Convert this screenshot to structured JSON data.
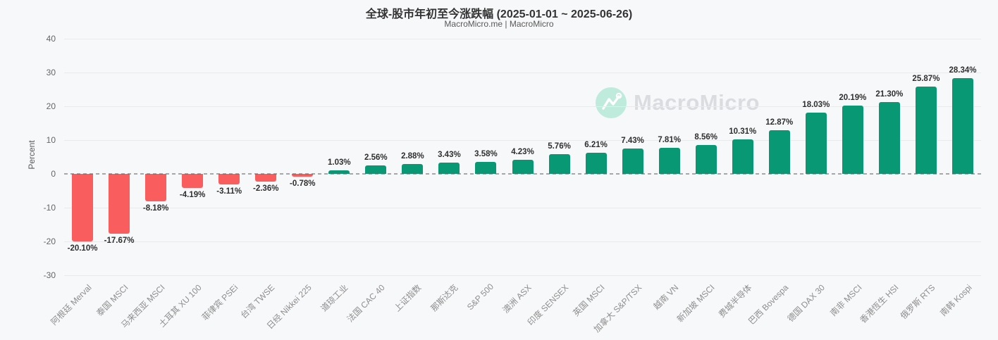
{
  "header": {
    "title": "全球-股市年初至今涨跌幅 (2025-01-01 ~ 2025-06-26)",
    "subtitle": "MacroMicro.me | MacroMicro"
  },
  "watermark": {
    "brand": "MacroMicro",
    "icon": "mountain-chart-icon",
    "circle_color": "#BEEBDB",
    "text_color": "#DADCE0"
  },
  "chart_data": {
    "type": "bar",
    "title": "全球-股市年初至今涨跌幅 (2025-01-01 ~ 2025-06-26)",
    "xlabel": "",
    "ylabel": "Percent",
    "ylim": [
      -30,
      40
    ],
    "yticks": [
      40,
      30,
      20,
      10,
      0,
      -10,
      -20,
      -30
    ],
    "grid": true,
    "zero_line": "dashed",
    "legend": "none",
    "categories": [
      "阿根廷 Merval",
      "泰国 MSCI",
      "马来西亚 MSCI",
      "土耳其 XU 100",
      "菲律宾 PSEi",
      "台湾 TWSE",
      "日经 Nikkei 225",
      "道琼工业",
      "法国 CAC 40",
      "上证指数",
      "那斯达克",
      "S&P 500",
      "澳洲 ASX",
      "印度 SENSEX",
      "英国 MSCI",
      "加拿大 S&P/TSX",
      "越南 VN",
      "新加坡 MSCI",
      "费城半导体",
      "巴西 Bovespa",
      "德国 DAX 30",
      "南非 MSCI",
      "香港恆生 HSI",
      "俄罗斯 RTS",
      "南韩 Kospi"
    ],
    "values": [
      -20.1,
      -17.67,
      -8.18,
      -4.19,
      -3.11,
      -2.36,
      -0.78,
      1.03,
      2.56,
      2.88,
      3.43,
      3.58,
      4.23,
      5.76,
      6.21,
      7.43,
      7.81,
      8.56,
      10.31,
      12.87,
      18.03,
      20.19,
      21.3,
      25.87,
      28.34
    ],
    "value_labels": [
      "-20.10%",
      "-17.67%",
      "-8.18%",
      "-4.19%",
      "-3.11%",
      "-2.36%",
      "-0.78%",
      "1.03%",
      "2.56%",
      "2.88%",
      "3.43%",
      "3.58%",
      "4.23%",
      "5.76%",
      "6.21%",
      "7.43%",
      "7.81%",
      "8.56%",
      "10.31%",
      "12.87%",
      "18.03%",
      "20.19%",
      "21.30%",
      "25.87%",
      "28.34%"
    ],
    "colors": {
      "negative": "#F95D5D",
      "positive": "#089974",
      "background": "#F7F8FA",
      "gridline": "#E8EAED"
    }
  }
}
